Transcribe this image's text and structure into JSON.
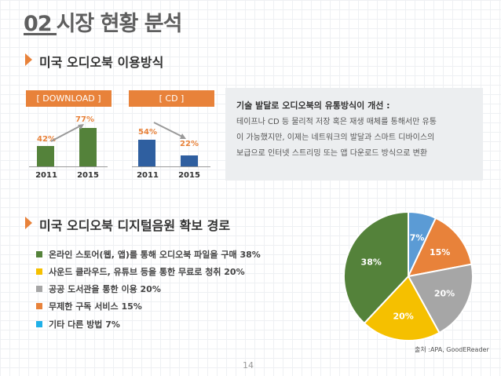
{
  "header": {
    "number": "02",
    "title": "시장 현황 분석"
  },
  "section1": {
    "title": "미국 오디오북 이용방식"
  },
  "download_chart": {
    "heading": "[ DOWNLOAD ]",
    "years": [
      "2011",
      "2015"
    ],
    "values": [
      "42%",
      "77%"
    ]
  },
  "cd_chart": {
    "heading": "[ CD ]",
    "years": [
      "2011",
      "2015"
    ],
    "values": [
      "54%",
      "22%"
    ]
  },
  "info": {
    "title": "기술 발달로 오디오북의 유통방식이 개선 :",
    "lines": [
      "테이프나 CD 등 물리적 저장 혹은 재생 매체를 통해서만 유통",
      "이 가능했지만, 이제는 네트워크의 발달과 스마트 디바이스의",
      "보급으로 인터넷 스트리밍 또는 앱 다운로드 방식으로 변환"
    ]
  },
  "section2": {
    "title": "미국 오디오북 디지털음원 확보 경로"
  },
  "legend": [
    {
      "label": "온라인 스토어(웹, 앱)를 통해 오디오북 파일을 구매 38%",
      "color": "#54823a"
    },
    {
      "label": "사운드 클라우드, 유튜브 등을 통한 무료로 청취 20%",
      "color": "#f5c000"
    },
    {
      "label": "공공 도서관을 통한 이용 20%",
      "color": "#a6a6a6"
    },
    {
      "label": "무제한 구독 서비스 15%",
      "color": "#e8823a"
    },
    {
      "label": "기타 다른 방법 7%",
      "color": "#1fb0e8"
    }
  ],
  "chart_data": [
    {
      "type": "bar",
      "title": "[ DOWNLOAD ]",
      "categories": [
        "2011",
        "2015"
      ],
      "values": [
        42,
        77
      ],
      "ylim": [
        0,
        100
      ]
    },
    {
      "type": "bar",
      "title": "[ CD ]",
      "categories": [
        "2011",
        "2015"
      ],
      "values": [
        54,
        22
      ],
      "ylim": [
        0,
        100
      ]
    },
    {
      "type": "pie",
      "slices": [
        {
          "label": "7%",
          "value": 7,
          "color": "#5b9bd5"
        },
        {
          "label": "15%",
          "value": 15,
          "color": "#e8823a"
        },
        {
          "label": "20%",
          "value": 20,
          "color": "#a6a6a6"
        },
        {
          "label": "20%",
          "value": 20,
          "color": "#f5c000"
        },
        {
          "label": "38%",
          "value": 38,
          "color": "#54823a"
        }
      ]
    }
  ],
  "source": "출처 :APA, GoodEReader",
  "page_number": "14"
}
